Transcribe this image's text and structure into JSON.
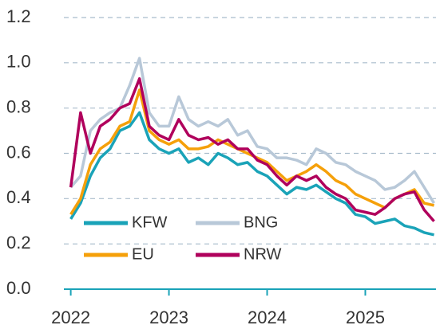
{
  "chart_data": {
    "type": "line",
    "x": [
      2022.0,
      2022.1,
      2022.2,
      2022.3,
      2022.4,
      2022.5,
      2022.6,
      2022.7,
      2022.8,
      2022.9,
      2023.0,
      2023.1,
      2023.2,
      2023.3,
      2023.4,
      2023.5,
      2023.6,
      2023.7,
      2023.8,
      2023.9,
      2024.0,
      2024.1,
      2024.2,
      2024.3,
      2024.4,
      2024.5,
      2024.6,
      2024.7,
      2024.8,
      2024.9,
      2025.0,
      2025.1,
      2025.2,
      2025.3,
      2025.4,
      2025.5,
      2025.6,
      2025.7
    ],
    "series": [
      {
        "name": "KFW",
        "color": "#1aa3b8",
        "values": [
          0.31,
          0.38,
          0.5,
          0.58,
          0.62,
          0.7,
          0.72,
          0.78,
          0.66,
          0.62,
          0.6,
          0.62,
          0.56,
          0.58,
          0.55,
          0.6,
          0.58,
          0.55,
          0.56,
          0.52,
          0.5,
          0.46,
          0.42,
          0.45,
          0.44,
          0.46,
          0.43,
          0.4,
          0.38,
          0.33,
          0.32,
          0.29,
          0.3,
          0.31,
          0.28,
          0.27,
          0.25,
          0.24
        ]
      },
      {
        "name": "BNG",
        "color": "#b8c8d8",
        "values": [
          0.45,
          0.5,
          0.7,
          0.75,
          0.78,
          0.8,
          0.9,
          1.02,
          0.78,
          0.72,
          0.72,
          0.85,
          0.75,
          0.72,
          0.74,
          0.72,
          0.75,
          0.68,
          0.7,
          0.63,
          0.62,
          0.58,
          0.58,
          0.57,
          0.55,
          0.62,
          0.6,
          0.56,
          0.55,
          0.52,
          0.5,
          0.48,
          0.44,
          0.45,
          0.48,
          0.52,
          0.45,
          0.38
        ]
      },
      {
        "name": "EU",
        "color": "#f5a00a",
        "values": [
          0.33,
          0.4,
          0.55,
          0.62,
          0.65,
          0.72,
          0.74,
          0.88,
          0.7,
          0.66,
          0.64,
          0.66,
          0.62,
          0.62,
          0.63,
          0.66,
          0.64,
          0.62,
          0.6,
          0.58,
          0.56,
          0.52,
          0.48,
          0.5,
          0.52,
          0.55,
          0.52,
          0.48,
          0.46,
          0.42,
          0.4,
          0.38,
          0.36,
          0.4,
          0.42,
          0.44,
          0.38,
          0.37
        ]
      },
      {
        "name": "NRW",
        "color": "#b0005c",
        "values": [
          0.45,
          0.78,
          0.6,
          0.72,
          0.75,
          0.8,
          0.82,
          0.93,
          0.72,
          0.68,
          0.66,
          0.75,
          0.68,
          0.66,
          0.67,
          0.64,
          0.66,
          0.62,
          0.62,
          0.57,
          0.55,
          0.5,
          0.46,
          0.5,
          0.48,
          0.5,
          0.45,
          0.42,
          0.4,
          0.35,
          0.34,
          0.33,
          0.36,
          0.4,
          0.42,
          0.43,
          0.35,
          0.3
        ]
      }
    ],
    "xlim": [
      2021.93,
      2025.72
    ],
    "xticks": [
      2022,
      2023,
      2024,
      2025
    ],
    "ylim": [
      0,
      1.2
    ],
    "yticks": [
      {
        "value": 0,
        "label": "0.0"
      },
      0.2,
      0.4,
      0.6,
      0.8,
      {
        "value": 1,
        "label": "1.0"
      },
      1.2
    ],
    "grid": true
  }
}
